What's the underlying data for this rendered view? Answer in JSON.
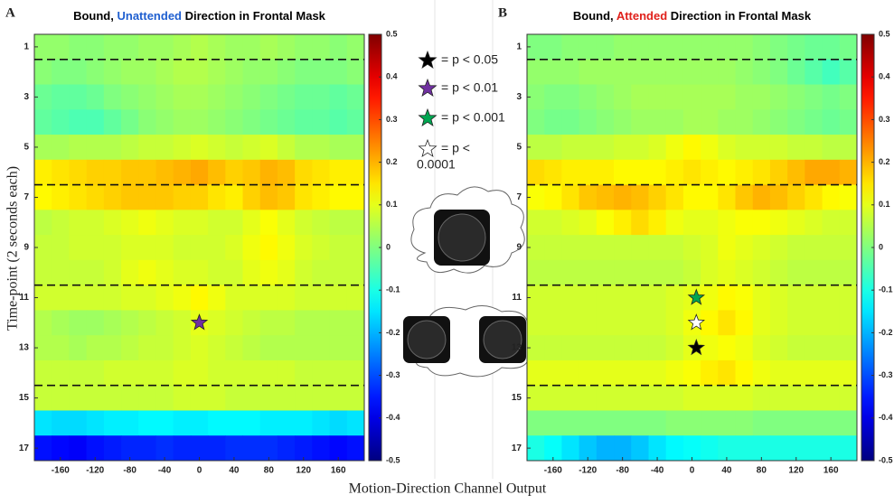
{
  "xlabel": "Motion-Direction Channel Output",
  "ylabel": "Time-point (2 seconds each)",
  "legend": [
    {
      "lines": [
        "= p < 0.05"
      ],
      "color": "#000000"
    },
    {
      "lines": [
        "= p < 0.01"
      ],
      "color": "#7030a0"
    },
    {
      "lines": [
        "= p < 0.001"
      ],
      "color": "#00a651"
    },
    {
      "lines": [
        "= p <",
        "0.0001"
      ],
      "color": "#ffffff"
    }
  ],
  "chart_data": [
    {
      "type": "heatmap",
      "panel_label": "A",
      "title_parts": [
        {
          "text": "Bound, ",
          "color": "#000000"
        },
        {
          "text": "Unattended",
          "color": "#1f5fd0"
        },
        {
          "text": " Direction in Frontal Mask",
          "color": "#000000"
        }
      ],
      "x": [
        -180,
        -160,
        -140,
        -120,
        -100,
        -80,
        -60,
        -40,
        -20,
        0,
        20,
        40,
        60,
        80,
        100,
        120,
        140,
        160,
        180
      ],
      "y": [
        1,
        2,
        3,
        4,
        5,
        6,
        7,
        8,
        9,
        10,
        11,
        12,
        13,
        14,
        15,
        16,
        17
      ],
      "xlim": [
        -190,
        190
      ],
      "ylim": [
        17.5,
        0.5
      ],
      "xticks": [
        -160,
        -120,
        -80,
        -40,
        0,
        40,
        80,
        120,
        160
      ],
      "yticks": [
        1,
        3,
        5,
        7,
        9,
        11,
        13,
        15,
        17
      ],
      "clim": [
        -0.5,
        0.5
      ],
      "cticks": [
        0.5,
        0.4,
        0.3,
        0.2,
        0.1,
        0,
        -0.1,
        -0.2,
        -0.3,
        -0.4,
        -0.5
      ],
      "colormap": "jet",
      "hlines": [
        1.5,
        6.5,
        10.5,
        14.5
      ],
      "markers": [
        {
          "x": 0,
          "y": 12,
          "color": "#7030a0"
        }
      ],
      "values": [
        [
          0.02,
          0.02,
          0.01,
          0.01,
          0.02,
          0.02,
          0.03,
          0.03,
          0.04,
          0.05,
          0.04,
          0.03,
          0.03,
          0.04,
          0.03,
          0.02,
          0.02,
          0.01,
          0.02
        ],
        [
          0.01,
          0,
          0,
          0.01,
          0.02,
          0.03,
          0.03,
          0.04,
          0.05,
          0.05,
          0.04,
          0.03,
          0.02,
          0.02,
          0.01,
          0,
          0,
          0,
          0.01
        ],
        [
          -0.02,
          -0.03,
          -0.03,
          -0.02,
          0,
          0.01,
          0.02,
          0.03,
          0.04,
          0.04,
          0.03,
          0.02,
          0.01,
          0,
          -0.01,
          -0.02,
          -0.02,
          -0.03,
          -0.02
        ],
        [
          -0.03,
          -0.04,
          -0.05,
          -0.05,
          -0.03,
          -0.01,
          0.01,
          0.02,
          0.03,
          0.03,
          0.02,
          0.01,
          0,
          -0.01,
          -0.02,
          -0.03,
          -0.03,
          -0.04,
          -0.03
        ],
        [
          0.04,
          0.04,
          0.05,
          0.05,
          0.05,
          0.06,
          0.07,
          0.07,
          0.08,
          0.09,
          0.08,
          0.07,
          0.08,
          0.09,
          0.07,
          0.05,
          0.05,
          0.04,
          0.04
        ],
        [
          0.14,
          0.15,
          0.16,
          0.17,
          0.17,
          0.18,
          0.18,
          0.19,
          0.2,
          0.21,
          0.19,
          0.17,
          0.18,
          0.2,
          0.19,
          0.16,
          0.15,
          0.14,
          0.14
        ],
        [
          0.13,
          0.14,
          0.15,
          0.16,
          0.17,
          0.18,
          0.18,
          0.18,
          0.17,
          0.17,
          0.15,
          0.14,
          0.17,
          0.19,
          0.18,
          0.15,
          0.14,
          0.13,
          0.13
        ],
        [
          0.06,
          0.07,
          0.08,
          0.08,
          0.09,
          0.1,
          0.11,
          0.1,
          0.09,
          0.09,
          0.08,
          0.08,
          0.1,
          0.12,
          0.1,
          0.08,
          0.07,
          0.06,
          0.06
        ],
        [
          0.07,
          0.07,
          0.08,
          0.08,
          0.08,
          0.09,
          0.09,
          0.09,
          0.08,
          0.08,
          0.08,
          0.09,
          0.11,
          0.13,
          0.11,
          0.09,
          0.08,
          0.07,
          0.07
        ],
        [
          0.07,
          0.07,
          0.07,
          0.07,
          0.08,
          0.1,
          0.11,
          0.1,
          0.09,
          0.09,
          0.08,
          0.08,
          0.1,
          0.11,
          0.1,
          0.08,
          0.07,
          0.07,
          0.07
        ],
        [
          0.08,
          0.08,
          0.08,
          0.08,
          0.08,
          0.09,
          0.09,
          0.1,
          0.11,
          0.13,
          0.11,
          0.09,
          0.09,
          0.09,
          0.09,
          0.08,
          0.08,
          0.08,
          0.08
        ],
        [
          0.05,
          0.04,
          0.03,
          0.03,
          0.04,
          0.05,
          0.06,
          0.07,
          0.08,
          0.1,
          0.09,
          0.08,
          0.07,
          0.06,
          0.06,
          0.05,
          0.05,
          0.05,
          0.05
        ],
        [
          0.05,
          0.05,
          0.04,
          0.05,
          0.05,
          0.06,
          0.07,
          0.07,
          0.08,
          0.09,
          0.08,
          0.07,
          0.06,
          0.05,
          0.05,
          0.05,
          0.05,
          0.05,
          0.05
        ],
        [
          0.07,
          0.07,
          0.07,
          0.07,
          0.08,
          0.08,
          0.08,
          0.08,
          0.09,
          0.09,
          0.08,
          0.08,
          0.08,
          0.08,
          0.08,
          0.07,
          0.07,
          0.07,
          0.07
        ],
        [
          0.07,
          0.07,
          0.07,
          0.07,
          0.07,
          0.07,
          0.07,
          0.07,
          0.08,
          0.08,
          0.08,
          0.07,
          0.07,
          0.07,
          0.07,
          0.07,
          0.07,
          0.07,
          0.07
        ],
        [
          -0.15,
          -0.16,
          -0.16,
          -0.15,
          -0.14,
          -0.14,
          -0.13,
          -0.13,
          -0.14,
          -0.14,
          -0.13,
          -0.13,
          -0.13,
          -0.14,
          -0.14,
          -0.14,
          -0.15,
          -0.16,
          -0.15
        ],
        [
          -0.36,
          -0.37,
          -0.38,
          -0.36,
          -0.35,
          -0.34,
          -0.34,
          -0.33,
          -0.34,
          -0.34,
          -0.34,
          -0.33,
          -0.33,
          -0.33,
          -0.34,
          -0.35,
          -0.36,
          -0.37,
          -0.36
        ]
      ]
    },
    {
      "type": "heatmap",
      "panel_label": "B",
      "title_parts": [
        {
          "text": "Bound, ",
          "color": "#000000"
        },
        {
          "text": "Attended",
          "color": "#e0201b"
        },
        {
          "text": " Direction in Frontal Mask",
          "color": "#000000"
        }
      ],
      "x": [
        -180,
        -160,
        -140,
        -120,
        -100,
        -80,
        -60,
        -40,
        -20,
        0,
        20,
        40,
        60,
        80,
        100,
        120,
        140,
        160,
        180
      ],
      "y": [
        1,
        2,
        3,
        4,
        5,
        6,
        7,
        8,
        9,
        10,
        11,
        12,
        13,
        14,
        15,
        16,
        17
      ],
      "xlim": [
        -190,
        190
      ],
      "ylim": [
        17.5,
        0.5
      ],
      "xticks": [
        -160,
        -120,
        -80,
        -40,
        0,
        40,
        80,
        120,
        160
      ],
      "yticks": [
        1,
        3,
        5,
        7,
        9,
        11,
        13,
        15,
        17
      ],
      "clim": [
        -0.5,
        0.5
      ],
      "cticks": [
        0.5,
        0.4,
        0.3,
        0.2,
        0.1,
        0,
        -0.1,
        -0.2,
        -0.3,
        -0.4,
        -0.5
      ],
      "colormap": "jet",
      "hlines": [
        1.5,
        6.5,
        10.5,
        14.5
      ],
      "markers": [
        {
          "x": 5,
          "y": 11,
          "color": "#00a651"
        },
        {
          "x": 5,
          "y": 12,
          "color": "#ffffff"
        },
        {
          "x": 5,
          "y": 13,
          "color": "#000000"
        }
      ],
      "values": [
        [
          0,
          0,
          0.01,
          0.01,
          0.01,
          0.02,
          0.02,
          0.02,
          0.02,
          0.02,
          0.02,
          0.02,
          0.02,
          0.01,
          0,
          -0.01,
          -0.02,
          -0.02,
          -0.01
        ],
        [
          0.02,
          0.02,
          0.02,
          0.03,
          0.03,
          0.03,
          0.03,
          0.03,
          0.03,
          0.03,
          0.03,
          0.03,
          0.02,
          0.01,
          0,
          -0.02,
          -0.04,
          -0.06,
          -0.04
        ],
        [
          0.01,
          0,
          0,
          0.01,
          0.02,
          0.03,
          0.04,
          0.04,
          0.04,
          0.04,
          0.04,
          0.04,
          0.03,
          0.03,
          0.02,
          0.01,
          0,
          -0.01,
          0
        ],
        [
          0,
          -0.01,
          -0.01,
          0,
          0.01,
          0.02,
          0.03,
          0.03,
          0.03,
          0.04,
          0.04,
          0.03,
          0.03,
          0.02,
          0.01,
          0,
          -0.01,
          -0.02,
          -0.01
        ],
        [
          0.06,
          0.06,
          0.07,
          0.07,
          0.07,
          0.08,
          0.08,
          0.09,
          0.11,
          0.13,
          0.11,
          0.09,
          0.08,
          0.08,
          0.08,
          0.07,
          0.07,
          0.06,
          0.06
        ],
        [
          0.16,
          0.15,
          0.14,
          0.14,
          0.14,
          0.13,
          0.13,
          0.13,
          0.14,
          0.15,
          0.14,
          0.13,
          0.14,
          0.15,
          0.17,
          0.19,
          0.21,
          0.21,
          0.2
        ],
        [
          0.12,
          0.13,
          0.15,
          0.18,
          0.19,
          0.2,
          0.19,
          0.17,
          0.15,
          0.13,
          0.13,
          0.15,
          0.18,
          0.2,
          0.19,
          0.17,
          0.15,
          0.13,
          0.12
        ],
        [
          0.08,
          0.08,
          0.09,
          0.1,
          0.12,
          0.14,
          0.16,
          0.14,
          0.11,
          0.1,
          0.1,
          0.11,
          0.12,
          0.12,
          0.11,
          0.1,
          0.09,
          0.08,
          0.08
        ],
        [
          0.07,
          0.07,
          0.07,
          0.07,
          0.07,
          0.07,
          0.07,
          0.07,
          0.07,
          0.08,
          0.09,
          0.11,
          0.1,
          0.09,
          0.08,
          0.07,
          0.07,
          0.07,
          0.07
        ],
        [
          0.06,
          0.06,
          0.06,
          0.06,
          0.06,
          0.06,
          0.06,
          0.06,
          0.06,
          0.07,
          0.09,
          0.1,
          0.09,
          0.08,
          0.07,
          0.06,
          0.06,
          0.06,
          0.06
        ],
        [
          0.08,
          0.08,
          0.08,
          0.08,
          0.08,
          0.08,
          0.08,
          0.08,
          0.09,
          0.1,
          0.11,
          0.13,
          0.12,
          0.1,
          0.09,
          0.08,
          0.08,
          0.08,
          0.08
        ],
        [
          0.08,
          0.08,
          0.08,
          0.08,
          0.08,
          0.08,
          0.08,
          0.08,
          0.09,
          0.11,
          0.13,
          0.15,
          0.13,
          0.1,
          0.09,
          0.08,
          0.08,
          0.08,
          0.08
        ],
        [
          0.07,
          0.07,
          0.07,
          0.07,
          0.07,
          0.07,
          0.07,
          0.07,
          0.08,
          0.1,
          0.11,
          0.12,
          0.11,
          0.09,
          0.08,
          0.07,
          0.07,
          0.07,
          0.07
        ],
        [
          0.1,
          0.1,
          0.1,
          0.1,
          0.1,
          0.1,
          0.1,
          0.1,
          0.11,
          0.12,
          0.14,
          0.15,
          0.13,
          0.11,
          0.1,
          0.1,
          0.1,
          0.1,
          0.1
        ],
        [
          0.08,
          0.08,
          0.08,
          0.08,
          0.08,
          0.08,
          0.08,
          0.08,
          0.08,
          0.09,
          0.09,
          0.09,
          0.09,
          0.08,
          0.08,
          0.08,
          0.08,
          0.08,
          0.08
        ],
        [
          0,
          0,
          0,
          0,
          0,
          0,
          0,
          0,
          0.01,
          0.01,
          0.01,
          0.01,
          0.01,
          0,
          0,
          0,
          0,
          0,
          0
        ],
        [
          -0.1,
          -0.12,
          -0.15,
          -0.18,
          -0.2,
          -0.2,
          -0.18,
          -0.15,
          -0.13,
          -0.12,
          -0.11,
          -0.1,
          -0.1,
          -0.1,
          -0.1,
          -0.1,
          -0.1,
          -0.1,
          -0.1
        ]
      ]
    }
  ]
}
